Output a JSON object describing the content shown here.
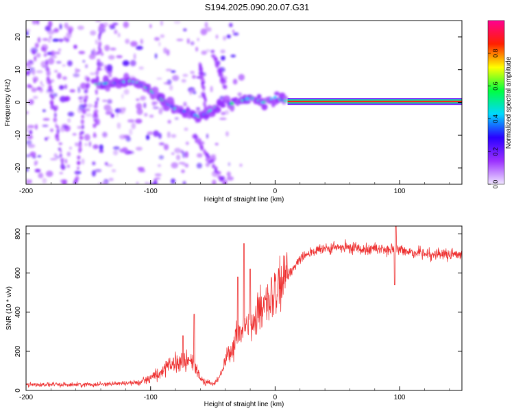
{
  "page_title": "S194.2025.090.20.07.G31",
  "chart_data": [
    {
      "type": "heatmap",
      "xlabel": "Height of straight line (km)",
      "ylabel": "Frequency (Hz)",
      "xlim": [
        -200,
        150
      ],
      "ylim": [
        -25,
        25
      ],
      "x_ticks": [
        -200,
        -100,
        0,
        100
      ],
      "y_ticks": [
        -20,
        -10,
        0,
        10,
        20
      ],
      "grid": false,
      "colorbar": {
        "label": "Normalized spectral amplitude",
        "range": [
          0,
          1
        ],
        "ticks": [
          0.0,
          0.2,
          0.4,
          0.6,
          0.8
        ],
        "tick_labels": [
          "0.0",
          "0.2",
          "0.4",
          "0.6",
          "0.8"
        ],
        "colors": [
          "#f0e6ff",
          "#9b30ff",
          "#2a00ff",
          "#00d8ff",
          "#00ff40",
          "#ffff00",
          "#ff2000",
          "#ff0090"
        ]
      },
      "ridge": [
        {
          "x": -145,
          "y": 5.5
        },
        {
          "x": -130,
          "y": 6.0
        },
        {
          "x": -115,
          "y": 6.5
        },
        {
          "x": -105,
          "y": 5.0
        },
        {
          "x": -98,
          "y": 3.0
        },
        {
          "x": -90,
          "y": 0.5
        },
        {
          "x": -80,
          "y": -2.0
        },
        {
          "x": -70,
          "y": -3.0
        },
        {
          "x": -60,
          "y": -4.5
        },
        {
          "x": -45,
          "y": -1.0
        },
        {
          "x": -30,
          "y": 0.0
        },
        {
          "x": -20,
          "y": 1.5
        },
        {
          "x": -10,
          "y": 0.0
        },
        {
          "x": 0,
          "y": 1.5
        },
        {
          "x": 10,
          "y": 0.3
        },
        {
          "x": 150,
          "y": 0.3
        }
      ]
    },
    {
      "type": "line",
      "xlabel": "Height of straight line (km)",
      "ylabel": "SNR (10 * v/v)",
      "xlim": [
        -200,
        150
      ],
      "ylim": [
        0,
        840
      ],
      "x_ticks": [
        -200,
        -100,
        0,
        100
      ],
      "y_ticks": [
        0,
        200,
        400,
        600,
        800
      ],
      "grid": false,
      "color": "#ee3030",
      "envelope": [
        {
          "x": -200,
          "y": 30
        },
        {
          "x": -150,
          "y": 30
        },
        {
          "x": -110,
          "y": 40
        },
        {
          "x": -95,
          "y": 80
        },
        {
          "x": -85,
          "y": 120
        },
        {
          "x": -75,
          "y": 150
        },
        {
          "x": -65,
          "y": 140
        },
        {
          "x": -60,
          "y": 60
        },
        {
          "x": -50,
          "y": 30
        },
        {
          "x": -45,
          "y": 60
        },
        {
          "x": -40,
          "y": 150
        },
        {
          "x": -35,
          "y": 200
        },
        {
          "x": -30,
          "y": 280
        },
        {
          "x": -25,
          "y": 330
        },
        {
          "x": -20,
          "y": 350
        },
        {
          "x": -15,
          "y": 380
        },
        {
          "x": -10,
          "y": 400
        },
        {
          "x": -5,
          "y": 450
        },
        {
          "x": 0,
          "y": 490
        },
        {
          "x": 5,
          "y": 530
        },
        {
          "x": 10,
          "y": 590
        },
        {
          "x": 15,
          "y": 630
        },
        {
          "x": 20,
          "y": 680
        },
        {
          "x": 30,
          "y": 710
        },
        {
          "x": 50,
          "y": 730
        },
        {
          "x": 80,
          "y": 725
        },
        {
          "x": 100,
          "y": 715
        },
        {
          "x": 120,
          "y": 700
        },
        {
          "x": 150,
          "y": 690
        }
      ],
      "spikes": [
        {
          "x": -74,
          "y": 280
        },
        {
          "x": -65,
          "y": 390
        },
        {
          "x": -30,
          "y": 580
        },
        {
          "x": -25,
          "y": 750
        },
        {
          "x": -20,
          "y": 620
        },
        {
          "x": 97,
          "y": 840
        },
        {
          "x": 96,
          "y": 540
        }
      ]
    }
  ]
}
